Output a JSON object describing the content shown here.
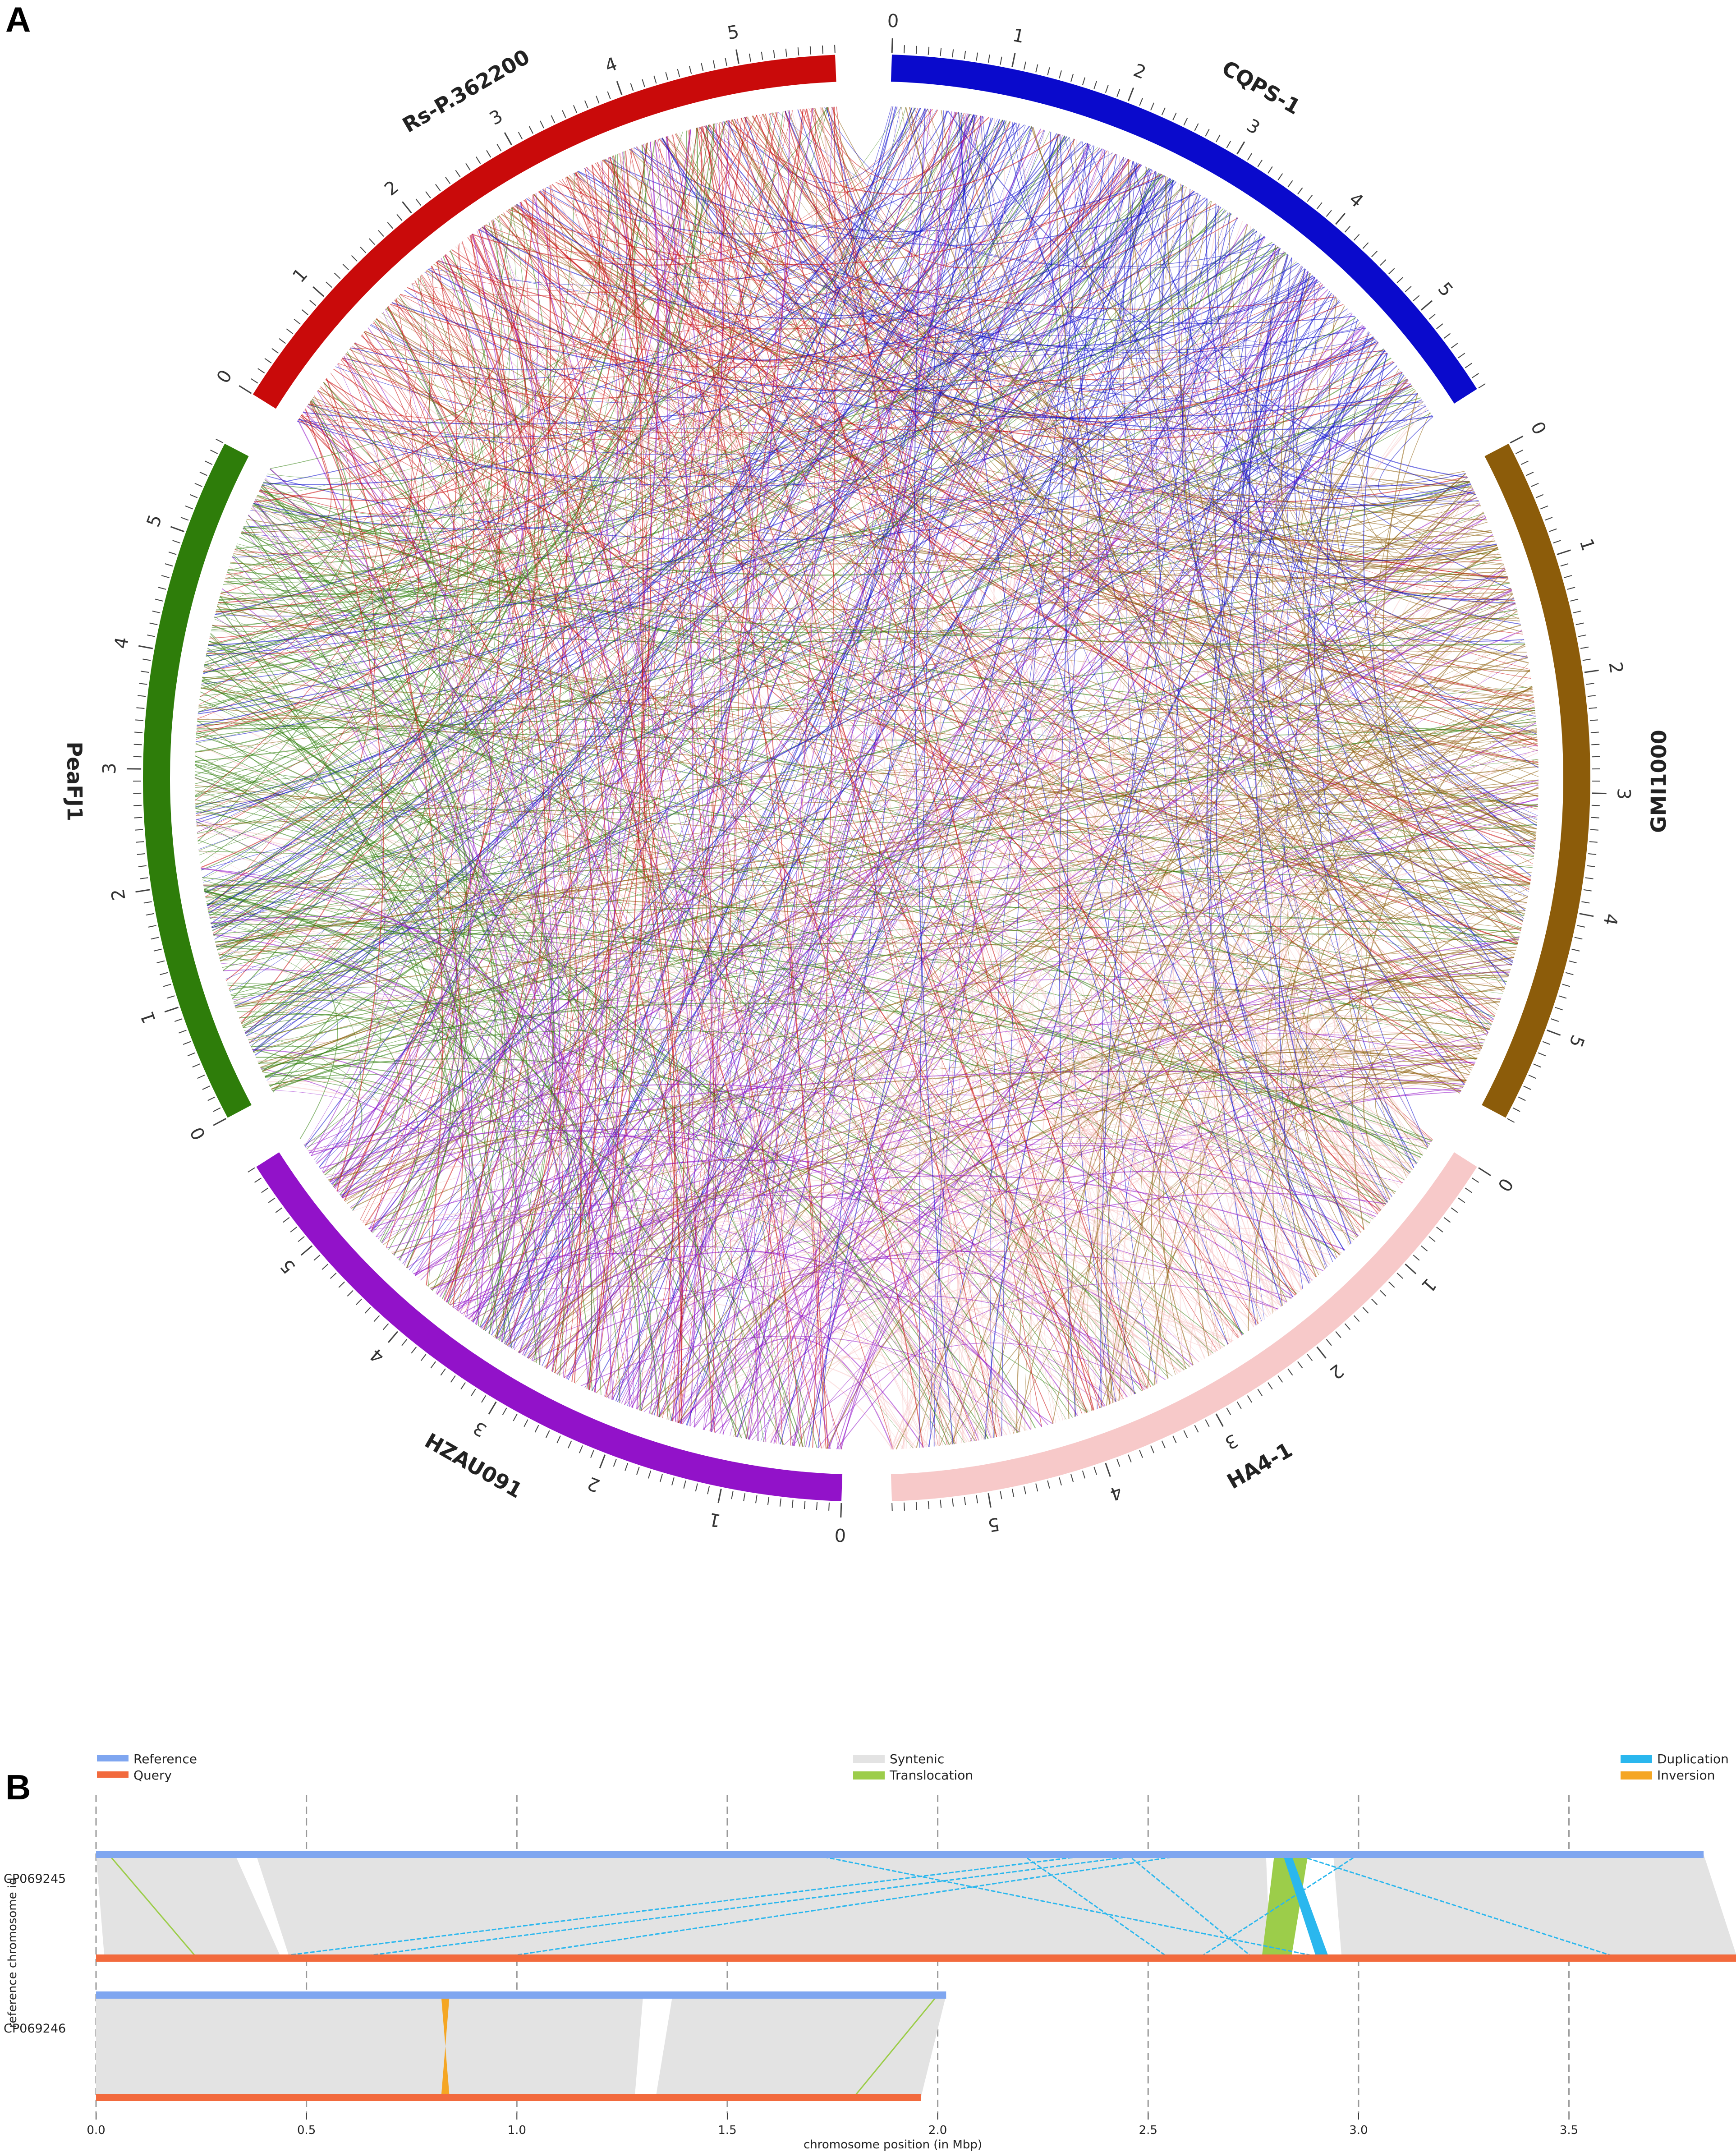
{
  "panel_a": {
    "letter": "A",
    "genomes": [
      {
        "name": "CQPS-1",
        "color": "#0a0acc",
        "ticks": [
          "0",
          "1",
          "2",
          "3",
          "4",
          "5"
        ]
      },
      {
        "name": "GMI1000",
        "color": "#8c5c0a",
        "ticks": [
          "0",
          "1",
          "2",
          "3",
          "4",
          "5"
        ]
      },
      {
        "name": "HA4-1",
        "color": "#f7c9c9",
        "ticks": [
          "0",
          "1",
          "2",
          "3",
          "4",
          "5"
        ]
      },
      {
        "name": "HZAU091",
        "color": "#9212c9",
        "ticks": [
          "0",
          "1",
          "2",
          "3",
          "4",
          "5"
        ]
      },
      {
        "name": "PeaFJ1",
        "color": "#2e7d0a",
        "ticks": [
          "0",
          "1",
          "2",
          "3",
          "4",
          "5"
        ]
      },
      {
        "name": "Rs-P.362200",
        "color": "#c90a0a",
        "ticks": [
          "0",
          "1",
          "2",
          "3",
          "4",
          "5"
        ]
      }
    ]
  },
  "panel_b": {
    "letter": "B",
    "legend": {
      "reference": {
        "label": "Reference",
        "color": "#7fa6f0"
      },
      "query": {
        "label": "Query",
        "color": "#f26a3d"
      },
      "syntenic": {
        "label": "Syntenic",
        "color": "#e3e3e3"
      },
      "translocation": {
        "label": "Translocation",
        "color": "#9ccd4a"
      },
      "duplication": {
        "label": "Duplication",
        "color": "#2ab7ee"
      },
      "inversion": {
        "label": "Inversion",
        "color": "#f5a623"
      }
    },
    "y_axis_label": "reference chromosome id",
    "x_axis_label": "chromosome position (in Mbp)",
    "x_ticks": [
      "0.0",
      "0.5",
      "1.0",
      "1.5",
      "2.0",
      "2.5",
      "3.0",
      "3.5"
    ],
    "chromosomes": [
      {
        "id": "CP069245",
        "reference_length_mbp": 3.82,
        "query_length_mbp": 3.9
      },
      {
        "id": "CP069246",
        "reference_length_mbp": 2.02,
        "query_length_mbp": 1.96
      }
    ]
  }
}
